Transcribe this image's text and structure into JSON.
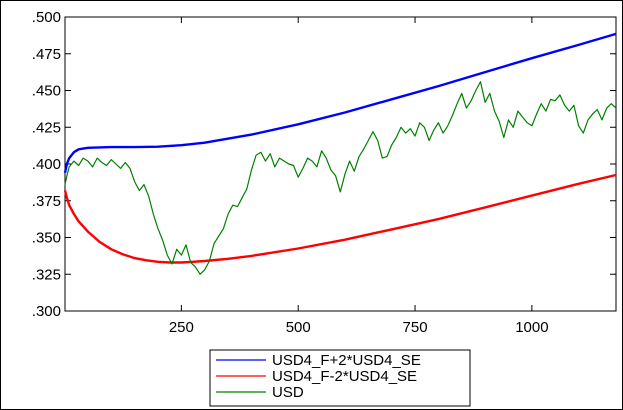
{
  "chart_data": {
    "type": "line",
    "title": "",
    "xlabel": "",
    "ylabel": "",
    "xlim": [
      1,
      1180
    ],
    "ylim": [
      0.3,
      0.5
    ],
    "x_ticks": [
      250,
      500,
      750,
      1000
    ],
    "x_tick_labels": [
      "250",
      "500",
      "750",
      "1000"
    ],
    "y_ticks": [
      0.3,
      0.325,
      0.35,
      0.375,
      0.4,
      0.425,
      0.45,
      0.475,
      0.5
    ],
    "y_tick_labels": [
      ".300",
      ".325",
      ".350",
      ".375",
      ".400",
      ".425",
      ".450",
      ".475",
      ".500"
    ],
    "grid": false,
    "legend_position": "bottom-center",
    "series": [
      {
        "name": "USD4_F+2*USD4_SE",
        "color": "#0000ff",
        "x": [
          1,
          5,
          10,
          20,
          30,
          50,
          100,
          150,
          200,
          250,
          300,
          400,
          500,
          600,
          700,
          800,
          900,
          1000,
          1100,
          1180
        ],
        "y": [
          0.394,
          0.4,
          0.404,
          0.408,
          0.41,
          0.411,
          0.4115,
          0.4115,
          0.4118,
          0.4128,
          0.4145,
          0.42,
          0.427,
          0.435,
          0.444,
          0.453,
          0.4625,
          0.472,
          0.481,
          0.4885
        ]
      },
      {
        "name": "USD4_F-2*USD4_SE",
        "color": "#ff0000",
        "x": [
          1,
          5,
          10,
          20,
          30,
          50,
          75,
          100,
          125,
          150,
          175,
          200,
          225,
          250,
          275,
          300,
          350,
          400,
          500,
          600,
          700,
          800,
          900,
          1000,
          1100,
          1180
        ],
        "y": [
          0.382,
          0.377,
          0.372,
          0.366,
          0.361,
          0.354,
          0.347,
          0.342,
          0.3385,
          0.336,
          0.3345,
          0.3335,
          0.333,
          0.333,
          0.3335,
          0.334,
          0.3355,
          0.3375,
          0.3425,
          0.3485,
          0.3555,
          0.3625,
          0.3705,
          0.3785,
          0.3865,
          0.3925
        ]
      },
      {
        "name": "USD",
        "color": "#008000",
        "x": [
          1,
          5,
          10,
          20,
          30,
          40,
          50,
          60,
          70,
          80,
          90,
          100,
          110,
          120,
          130,
          140,
          150,
          160,
          170,
          180,
          190,
          200,
          210,
          220,
          230,
          240,
          250,
          260,
          270,
          280,
          290,
          300,
          310,
          320,
          330,
          340,
          350,
          360,
          370,
          380,
          390,
          400,
          410,
          420,
          430,
          440,
          450,
          460,
          470,
          480,
          490,
          500,
          510,
          520,
          530,
          540,
          550,
          560,
          570,
          580,
          590,
          600,
          610,
          620,
          630,
          640,
          650,
          660,
          670,
          680,
          690,
          700,
          710,
          720,
          730,
          740,
          750,
          760,
          770,
          780,
          790,
          800,
          810,
          820,
          830,
          840,
          850,
          860,
          870,
          880,
          890,
          900,
          910,
          920,
          930,
          940,
          950,
          960,
          970,
          980,
          990,
          1000,
          1010,
          1020,
          1030,
          1040,
          1050,
          1060,
          1070,
          1080,
          1090,
          1100,
          1110,
          1120,
          1130,
          1140,
          1150,
          1160,
          1170,
          1180
        ],
        "y": [
          0.386,
          0.392,
          0.398,
          0.402,
          0.399,
          0.404,
          0.402,
          0.398,
          0.404,
          0.401,
          0.399,
          0.403,
          0.4,
          0.397,
          0.401,
          0.397,
          0.388,
          0.382,
          0.386,
          0.378,
          0.366,
          0.356,
          0.348,
          0.338,
          0.332,
          0.342,
          0.338,
          0.345,
          0.333,
          0.33,
          0.325,
          0.328,
          0.334,
          0.346,
          0.351,
          0.356,
          0.366,
          0.372,
          0.371,
          0.377,
          0.383,
          0.396,
          0.406,
          0.408,
          0.402,
          0.407,
          0.398,
          0.404,
          0.402,
          0.4,
          0.399,
          0.391,
          0.397,
          0.404,
          0.402,
          0.398,
          0.409,
          0.404,
          0.396,
          0.392,
          0.381,
          0.393,
          0.402,
          0.395,
          0.405,
          0.41,
          0.416,
          0.422,
          0.416,
          0.404,
          0.405,
          0.413,
          0.418,
          0.425,
          0.421,
          0.424,
          0.419,
          0.428,
          0.425,
          0.416,
          0.423,
          0.428,
          0.421,
          0.426,
          0.433,
          0.441,
          0.448,
          0.438,
          0.443,
          0.45,
          0.456,
          0.442,
          0.448,
          0.436,
          0.429,
          0.418,
          0.43,
          0.425,
          0.436,
          0.432,
          0.428,
          0.426,
          0.434,
          0.441,
          0.436,
          0.444,
          0.443,
          0.447,
          0.44,
          0.436,
          0.44,
          0.426,
          0.421,
          0.43,
          0.434,
          0.437,
          0.43,
          0.438,
          0.441,
          0.438
        ]
      }
    ]
  }
}
